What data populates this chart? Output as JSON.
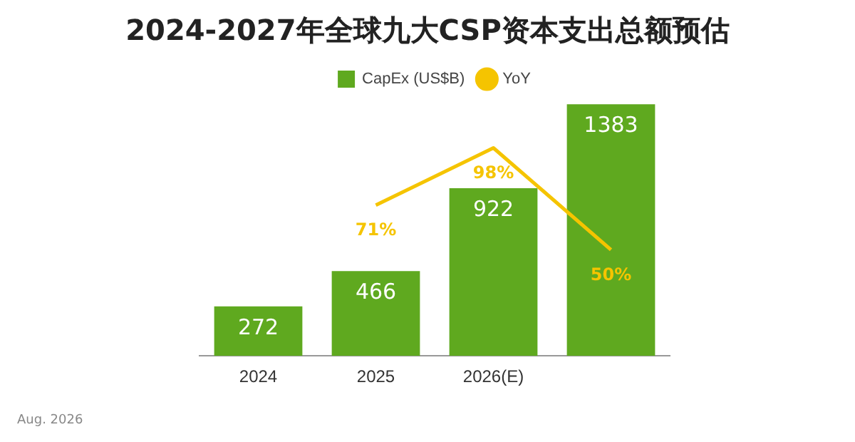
{
  "chart_data": {
    "type": "bar",
    "title": "2024-2027年全球九大CSP资本支出总额预估",
    "categories": [
      "2024",
      "2025",
      "2026(E)",
      null
    ],
    "series": [
      {
        "name": "CapEx (US$B)",
        "color": "#5fa91f",
        "values": [
          272,
          466,
          922,
          1383
        ]
      },
      {
        "name": "YoY",
        "type": "line",
        "axis": "y2",
        "color": "#f5c400",
        "values": [
          null,
          71,
          98,
          50
        ],
        "value_labels": [
          null,
          "71%",
          "98%",
          "50%"
        ]
      }
    ],
    "data_labels": true,
    "legend": "top",
    "grid": false,
    "tick_labels": "x",
    "marker": "none",
    "annotations": [
      "Aug. 2026"
    ]
  }
}
